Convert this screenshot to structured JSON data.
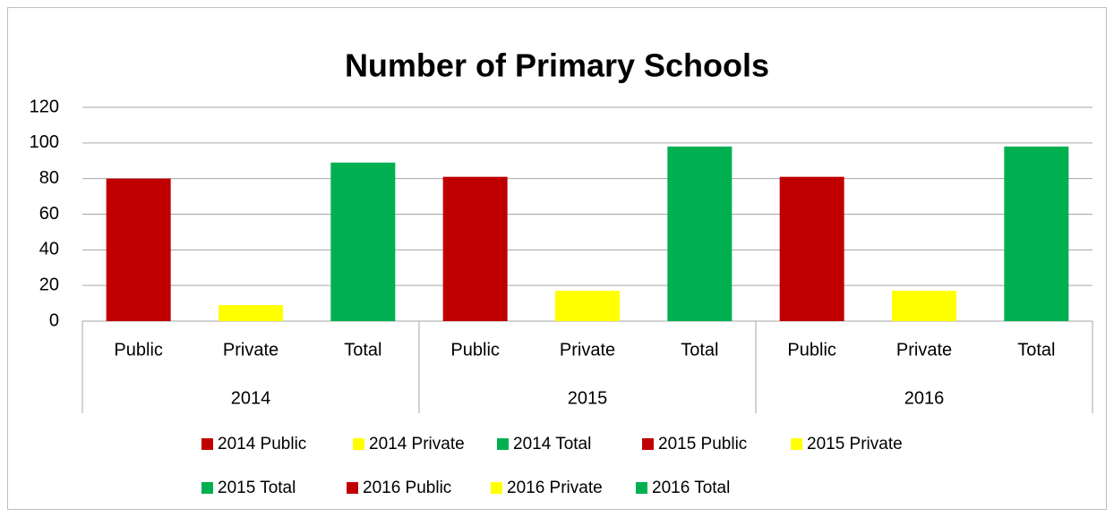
{
  "chart_data": {
    "type": "bar",
    "title": "Number of Primary Schools",
    "categories": [
      "Public",
      "Private",
      "Total",
      "Public",
      "Private",
      "Total",
      "Public",
      "Private",
      "Total"
    ],
    "groups": [
      "2014",
      "2015",
      "2016"
    ],
    "series": [
      {
        "name": "2014 Public",
        "color": "#c00000",
        "values": [
          80,
          null,
          null,
          null,
          null,
          null,
          null,
          null,
          null
        ]
      },
      {
        "name": "2014 Private",
        "color": "#ffff00",
        "values": [
          null,
          9,
          null,
          null,
          null,
          null,
          null,
          null,
          null
        ]
      },
      {
        "name": "2014 Total",
        "color": "#00b050",
        "values": [
          null,
          null,
          89,
          null,
          null,
          null,
          null,
          null,
          null
        ]
      },
      {
        "name": "2015 Public",
        "color": "#c00000",
        "values": [
          null,
          null,
          null,
          81,
          null,
          null,
          null,
          null,
          null
        ]
      },
      {
        "name": "2015 Private",
        "color": "#ffff00",
        "values": [
          null,
          null,
          null,
          null,
          17,
          null,
          null,
          null,
          null
        ]
      },
      {
        "name": "2015 Total",
        "color": "#00b050",
        "values": [
          null,
          null,
          null,
          null,
          null,
          98,
          null,
          null,
          null
        ]
      },
      {
        "name": "2016 Public",
        "color": "#c00000",
        "values": [
          null,
          null,
          null,
          null,
          null,
          null,
          81,
          null,
          null
        ]
      },
      {
        "name": "2016 Private",
        "color": "#ffff00",
        "values": [
          null,
          null,
          null,
          null,
          null,
          null,
          null,
          17,
          null
        ]
      },
      {
        "name": "2016 Total",
        "color": "#00b050",
        "values": [
          null,
          null,
          null,
          null,
          null,
          null,
          null,
          null,
          98
        ]
      }
    ],
    "ylim": [
      0,
      120
    ],
    "yticks": [
      0,
      20,
      40,
      60,
      80,
      100,
      120
    ],
    "grid": true,
    "legend": "bottom"
  }
}
